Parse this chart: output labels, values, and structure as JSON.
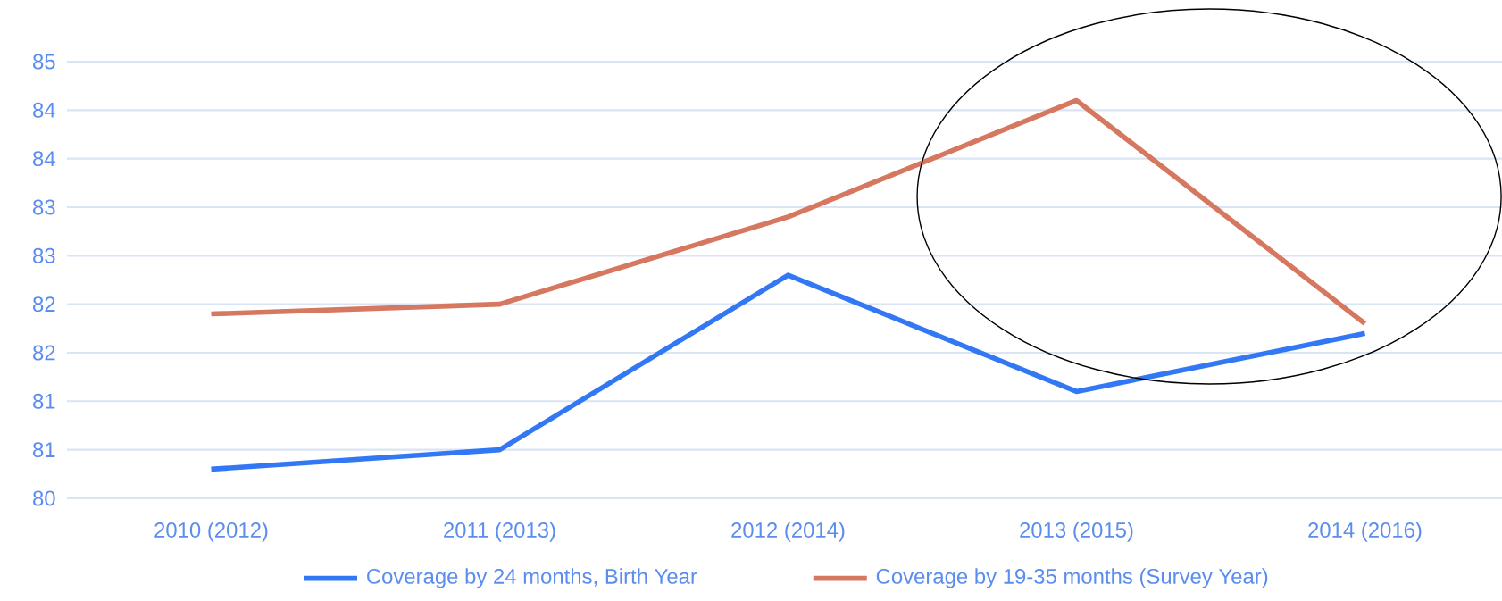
{
  "chart_data": {
    "type": "line",
    "categories": [
      "2010 (2012)",
      "2011 (2013)",
      "2012 (2014)",
      "2013 (2015)",
      "2014 (2016)"
    ],
    "series": [
      {
        "name": "Coverage by 24 months, Birth Year",
        "color": "#3278f5",
        "values": [
          80.3,
          80.5,
          82.3,
          81.1,
          81.7
        ]
      },
      {
        "name": "Coverage by 19-35 months (Survey Year)",
        "color": "#d6785f",
        "values": [
          81.9,
          82.0,
          82.9,
          84.1,
          81.8
        ]
      }
    ],
    "ylim": [
      80,
      84.5
    ],
    "yticks": [
      80,
      {
        "value": 80.5,
        "label": "81"
      },
      81,
      {
        "value": 81.5,
        "label": "82"
      },
      82,
      {
        "value": 82.5,
        "label": "83"
      },
      83,
      {
        "value": 83.5,
        "label": "84"
      },
      84,
      {
        "value": 84.5,
        "label": "85"
      }
    ],
    "grid": "y",
    "legend": "bottom"
  }
}
